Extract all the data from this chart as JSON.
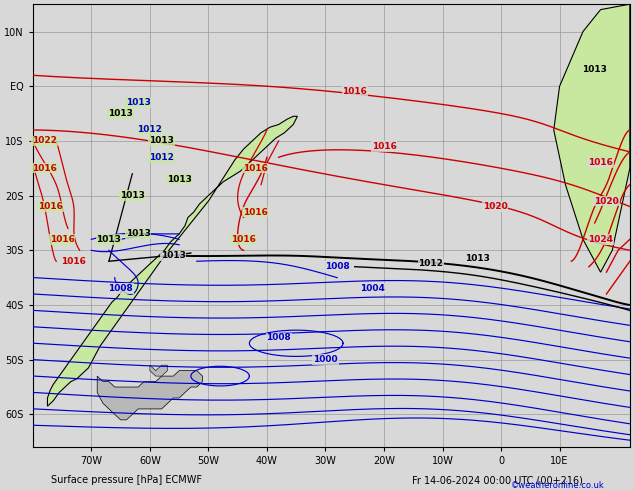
{
  "title": "Surface pressure [hPa] ECMWF",
  "date_label": "Fr 14-06-2024 00:00 UTC (00+216)",
  "credit": "©weatheronline.co.uk",
  "figsize": [
    6.34,
    4.9
  ],
  "dpi": 100,
  "bg_land": "#c8e8a0",
  "bg_sea": "#d8d8d8",
  "bg_patagonia": "#b8b8b8",
  "coastline_color": "#000000",
  "grid_color": "#999999",
  "isobar_black": "#000000",
  "isobar_red": "#cc0000",
  "isobar_blue": "#0000cc",
  "label_fontsize": 6.5,
  "axis_label_fontsize": 7,
  "xlim": [
    -80,
    22
  ],
  "ylim": [
    -66,
    15
  ],
  "xticks": [
    -70,
    -60,
    -50,
    -40,
    -30,
    -20,
    -10,
    0,
    10
  ],
  "yticks": [
    -60,
    -50,
    -40,
    -30,
    -20,
    -10,
    0,
    10
  ],
  "xtick_labels": [
    "70W",
    "60W",
    "50W",
    "40W",
    "30W",
    "20W",
    "10W",
    "0",
    "10E"
  ],
  "ytick_labels": [
    "60S",
    "50S",
    "40S",
    "30S",
    "20S",
    "10S",
    "EQ",
    "10N"
  ]
}
